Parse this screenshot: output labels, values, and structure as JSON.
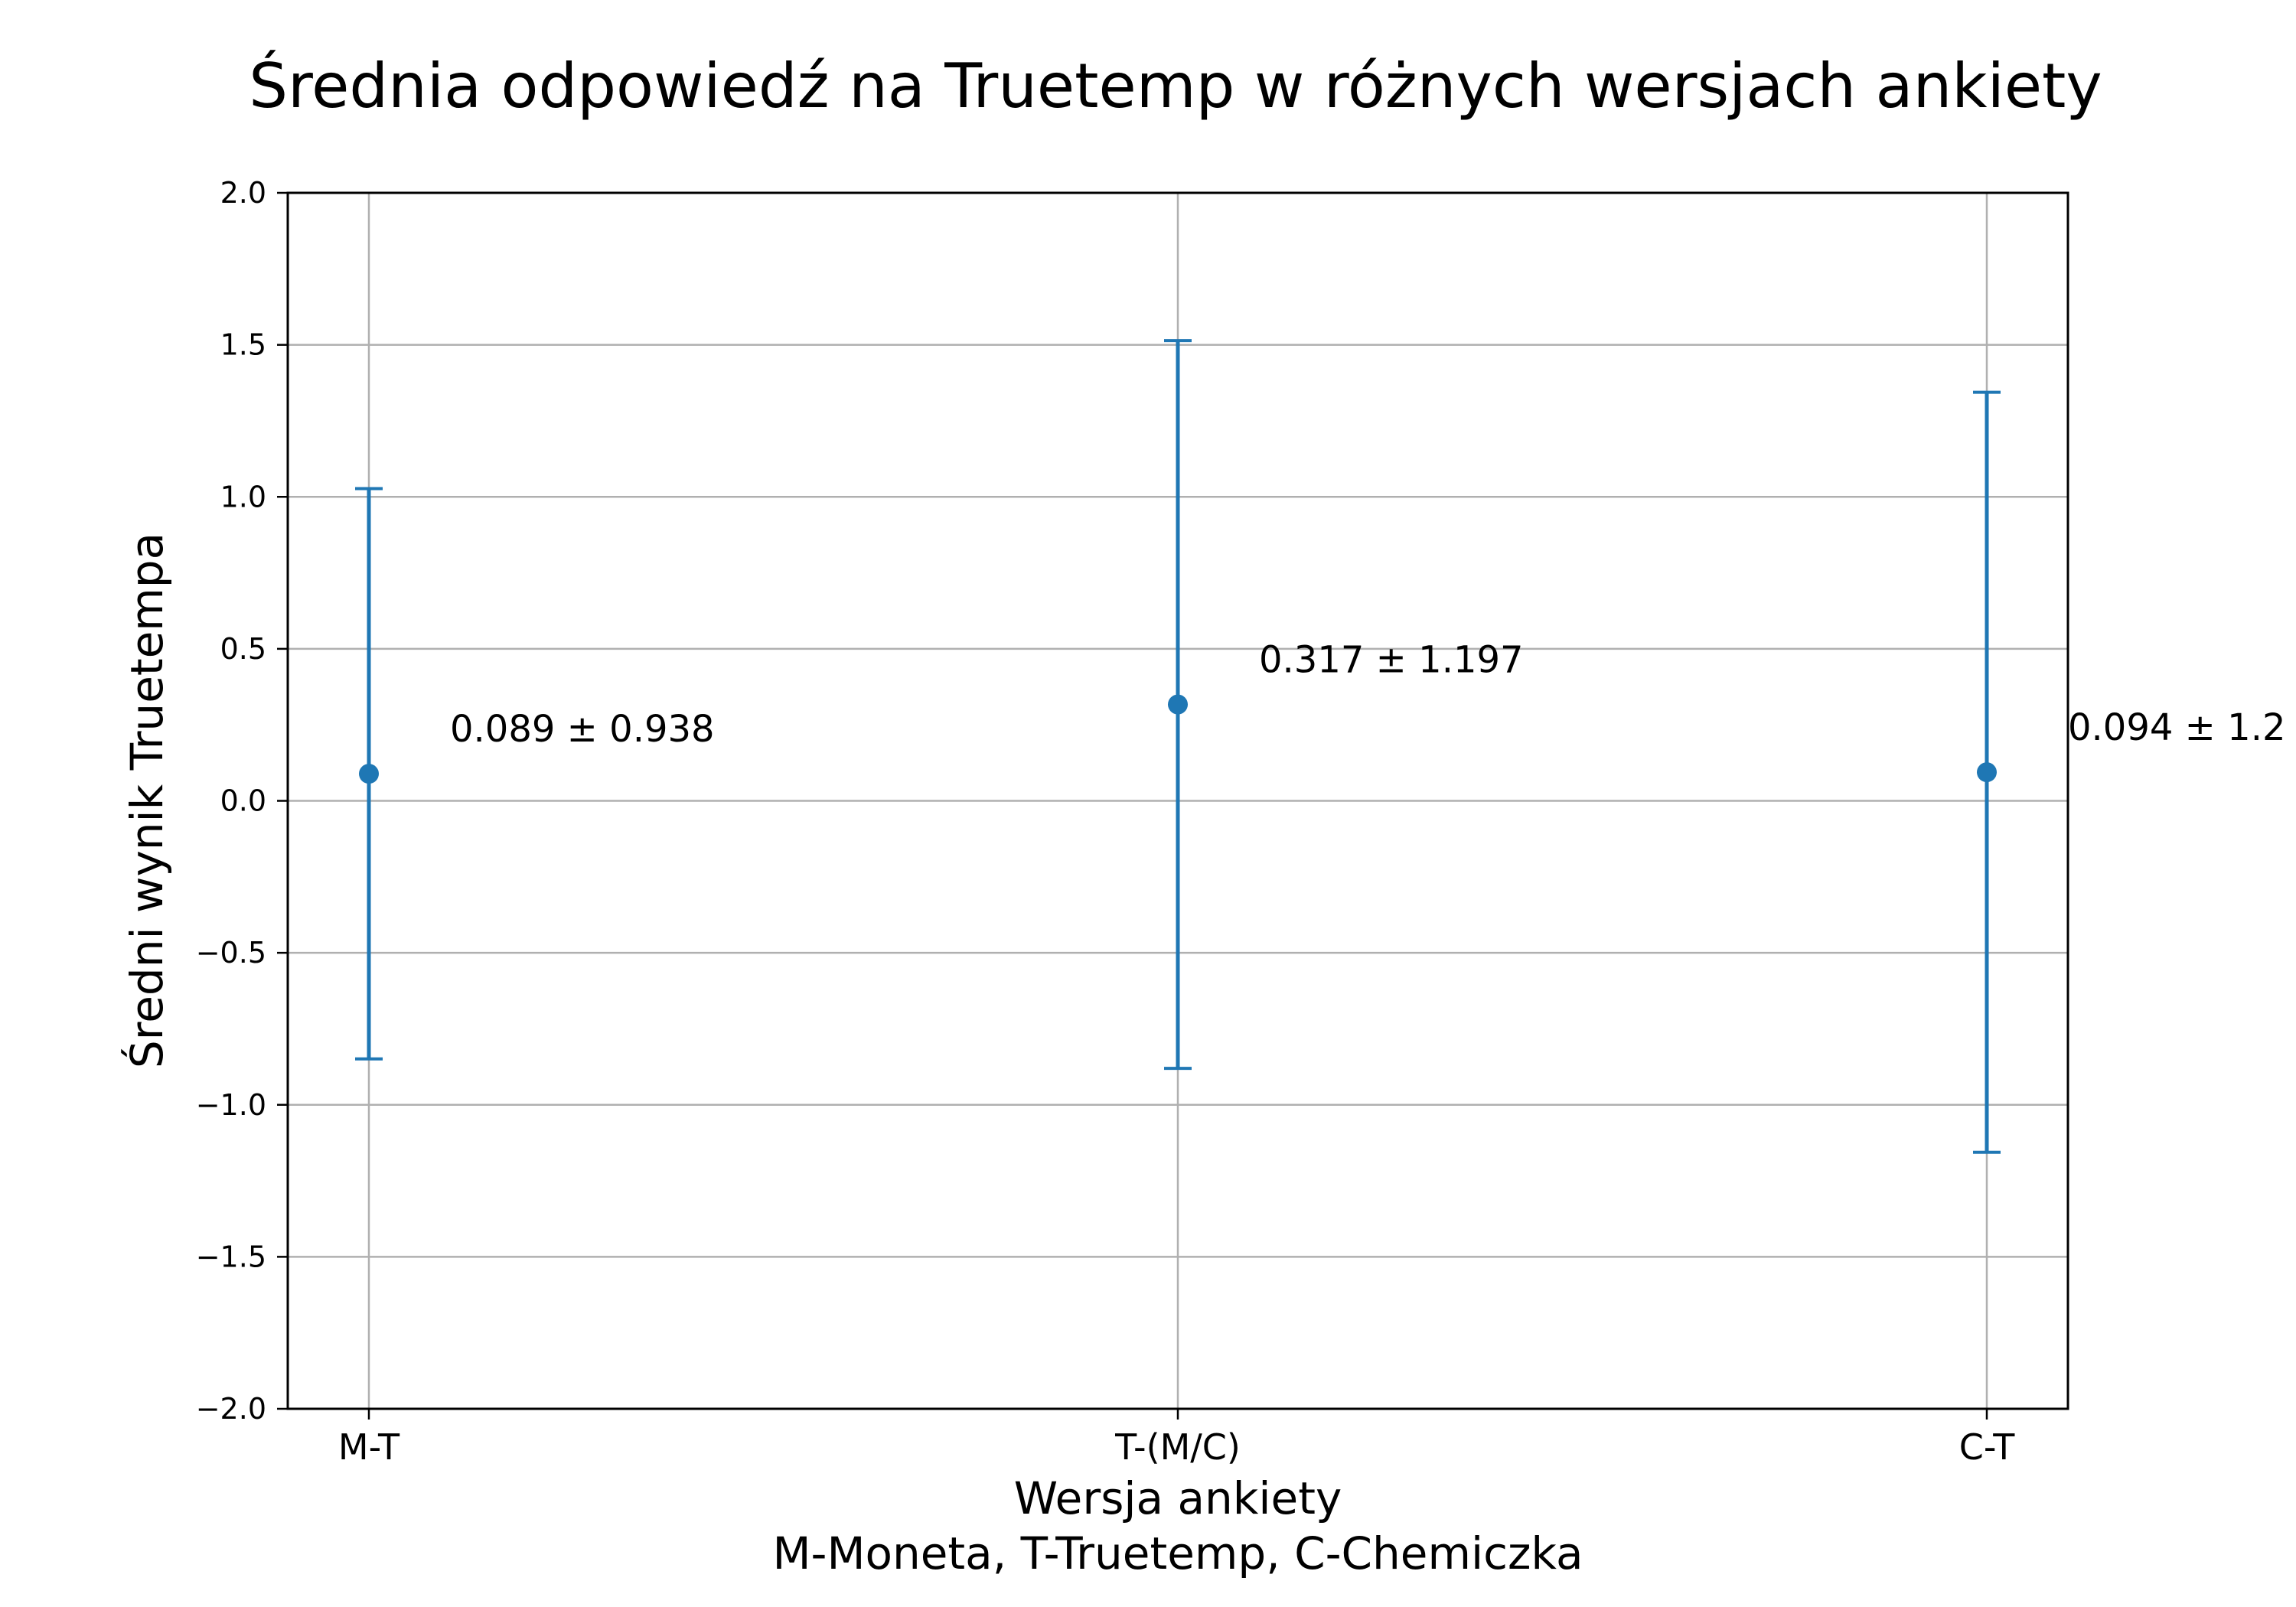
{
  "chart_data": {
    "type": "errorbar",
    "title": "Średnia odpowiedź na Truetemp w różnych wersjach ankiety",
    "xlabel": "Wersja ankiety",
    "xlabel_line2": "M-Moneta, T-Truetemp, C-Chemiczka",
    "ylabel": "Średni wynik Truetempa",
    "categories": [
      "M-T",
      "T-(M/C)",
      "C-T"
    ],
    "means": [
      0.089,
      0.317,
      0.094
    ],
    "errors": [
      0.938,
      1.197,
      1.25
    ],
    "annotations": [
      "0.089 ± 0.938",
      "0.317 ± 1.197",
      "0.094 ± 1.2"
    ],
    "ylim": [
      -2.0,
      2.0
    ],
    "yticks": [
      -2.0,
      -1.5,
      -1.0,
      -0.5,
      0.0,
      0.5,
      1.0,
      1.5,
      2.0
    ],
    "ytick_labels": [
      "−2.0",
      "−1.5",
      "−1.0",
      "−0.5",
      "0.0",
      "0.5",
      "1.0",
      "1.5",
      "2.0"
    ],
    "grid": true,
    "color": "#1f77b4"
  }
}
